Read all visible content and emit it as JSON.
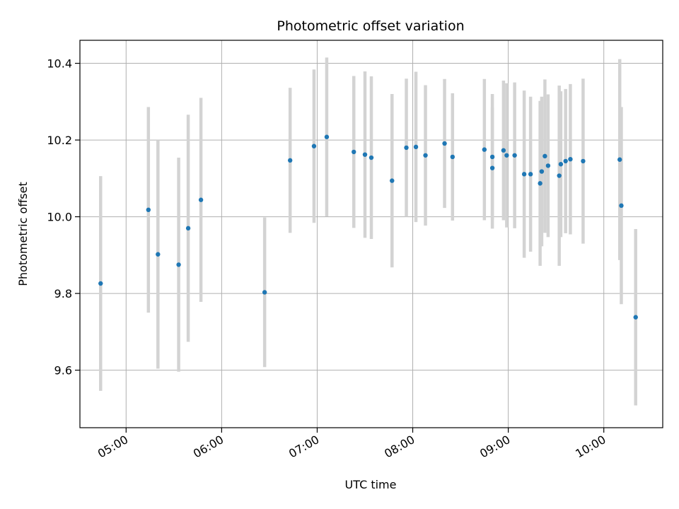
{
  "chart_data": {
    "type": "scatter",
    "title": "Photometric offset variation",
    "xlabel": "UTC time",
    "ylabel": "Photometric offset",
    "xlim": [
      "04:31",
      "10:37"
    ],
    "ylim": [
      9.45,
      10.46
    ],
    "grid": true,
    "x_ticks": [
      "05:00",
      "06:00",
      "07:00",
      "08:00",
      "09:00",
      "10:00"
    ],
    "y_ticks": [
      9.6,
      9.8,
      10.0,
      10.2,
      10.4
    ],
    "colors": {
      "points": "#1f77b4",
      "errorbars": "#d3d3d3",
      "grid": "#b0b0b0"
    },
    "points": [
      {
        "x": "04:44",
        "y": 9.826,
        "err": 0.28
      },
      {
        "x": "05:14",
        "y": 10.018,
        "err": 0.268
      },
      {
        "x": "05:20",
        "y": 9.902,
        "err": 0.298
      },
      {
        "x": "05:33",
        "y": 9.875,
        "err": 0.279
      },
      {
        "x": "05:39",
        "y": 9.97,
        "err": 0.296
      },
      {
        "x": "05:47",
        "y": 10.044,
        "err": 0.266
      },
      {
        "x": "06:27",
        "y": 9.803,
        "err": 0.195
      },
      {
        "x": "06:43",
        "y": 10.147,
        "err": 0.189
      },
      {
        "x": "06:58",
        "y": 10.184,
        "err": 0.2
      },
      {
        "x": "07:06",
        "y": 10.208,
        "err": 0.207
      },
      {
        "x": "07:23",
        "y": 10.169,
        "err": 0.198
      },
      {
        "x": "07:30",
        "y": 10.162,
        "err": 0.217
      },
      {
        "x": "07:34",
        "y": 10.154,
        "err": 0.212
      },
      {
        "x": "07:47",
        "y": 10.094,
        "err": 0.226
      },
      {
        "x": "07:56",
        "y": 10.18,
        "err": 0.18
      },
      {
        "x": "08:02",
        "y": 10.182,
        "err": 0.196
      },
      {
        "x": "08:08",
        "y": 10.16,
        "err": 0.183
      },
      {
        "x": "08:20",
        "y": 10.191,
        "err": 0.168
      },
      {
        "x": "08:25",
        "y": 10.156,
        "err": 0.166
      },
      {
        "x": "08:45",
        "y": 10.175,
        "err": 0.184
      },
      {
        "x": "08:50",
        "y": 10.156,
        "err": 0.164
      },
      {
        "x": "08:50",
        "y": 10.127,
        "err": 0.158
      },
      {
        "x": "08:57",
        "y": 10.173,
        "err": 0.182
      },
      {
        "x": "08:59",
        "y": 10.16,
        "err": 0.188
      },
      {
        "x": "09:04",
        "y": 10.16,
        "err": 0.19
      },
      {
        "x": "09:10",
        "y": 10.111,
        "err": 0.218
      },
      {
        "x": "09:14",
        "y": 10.111,
        "err": 0.202
      },
      {
        "x": "09:20",
        "y": 10.087,
        "err": 0.215
      },
      {
        "x": "09:21",
        "y": 10.118,
        "err": 0.195
      },
      {
        "x": "09:23",
        "y": 10.158,
        "err": 0.2
      },
      {
        "x": "09:25",
        "y": 10.133,
        "err": 0.186
      },
      {
        "x": "09:32",
        "y": 10.107,
        "err": 0.235
      },
      {
        "x": "09:33",
        "y": 10.137,
        "err": 0.19
      },
      {
        "x": "09:36",
        "y": 10.145,
        "err": 0.188
      },
      {
        "x": "09:39",
        "y": 10.15,
        "err": 0.196
      },
      {
        "x": "09:47",
        "y": 10.145,
        "err": 0.215
      },
      {
        "x": "10:10",
        "y": 10.149,
        "err": 0.262
      },
      {
        "x": "10:11",
        "y": 10.029,
        "err": 0.257
      },
      {
        "x": "10:20",
        "y": 9.738,
        "err": 0.23
      }
    ]
  }
}
